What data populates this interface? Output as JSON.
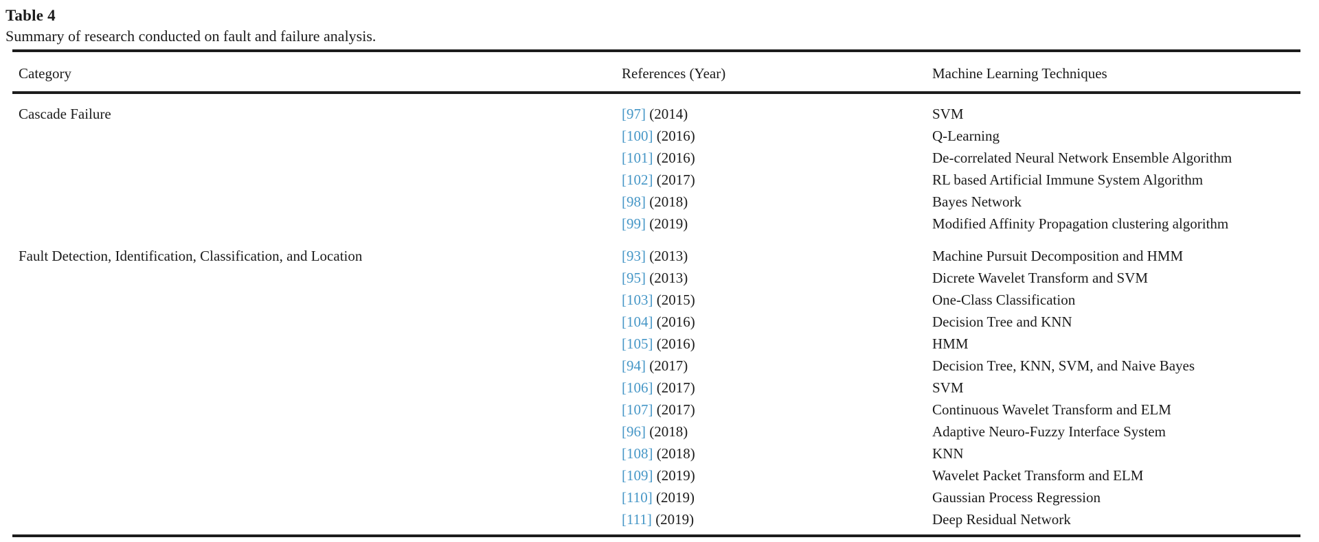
{
  "table": {
    "title": "Table 4",
    "caption": "Summary of research conducted on fault and failure analysis.",
    "columns": [
      "Category",
      "References (Year)",
      "Machine Learning Techniques"
    ],
    "colors": {
      "citation_link": "#4596c6",
      "text": "#1b1b1b",
      "rule": "#1c1c1c",
      "background": "#ffffff"
    },
    "groups": [
      {
        "category": "Cascade Failure",
        "rows": [
          {
            "ref": "[97]",
            "year": "(2014)",
            "technique": "SVM"
          },
          {
            "ref": "[100]",
            "year": "(2016)",
            "technique": "Q-Learning"
          },
          {
            "ref": "[101]",
            "year": "(2016)",
            "technique": "De-correlated Neural Network Ensemble Algorithm"
          },
          {
            "ref": "[102]",
            "year": "(2017)",
            "technique": "RL based Artificial Immune System Algorithm"
          },
          {
            "ref": "[98]",
            "year": "(2018)",
            "technique": "Bayes Network"
          },
          {
            "ref": "[99]",
            "year": "(2019)",
            "technique": "Modified Affinity Propagation clustering algorithm"
          }
        ]
      },
      {
        "category": "Fault Detection, Identification, Classification, and Location",
        "rows": [
          {
            "ref": "[93]",
            "year": "(2013)",
            "technique": "Machine Pursuit Decomposition and HMM"
          },
          {
            "ref": "[95]",
            "year": "(2013)",
            "technique": "Dicrete Wavelet Transform and SVM"
          },
          {
            "ref": "[103]",
            "year": "(2015)",
            "technique": "One-Class Classification"
          },
          {
            "ref": "[104]",
            "year": "(2016)",
            "technique": "Decision Tree and KNN"
          },
          {
            "ref": "[105]",
            "year": "(2016)",
            "technique": "HMM"
          },
          {
            "ref": "[94]",
            "year": "(2017)",
            "technique": "Decision Tree, KNN, SVM, and Naive Bayes"
          },
          {
            "ref": "[106]",
            "year": "(2017)",
            "technique": "SVM"
          },
          {
            "ref": "[107]",
            "year": "(2017)",
            "technique": "Continuous Wavelet Transform and ELM"
          },
          {
            "ref": "[96]",
            "year": "(2018)",
            "technique": "Adaptive Neuro-Fuzzy Interface System"
          },
          {
            "ref": "[108]",
            "year": "(2018)",
            "technique": "KNN"
          },
          {
            "ref": "[109]",
            "year": "(2019)",
            "technique": "Wavelet Packet Transform and ELM"
          },
          {
            "ref": "[110]",
            "year": "(2019)",
            "technique": "Gaussian Process Regression"
          },
          {
            "ref": "[111]",
            "year": "(2019)",
            "technique": "Deep Residual Network"
          }
        ]
      }
    ]
  }
}
